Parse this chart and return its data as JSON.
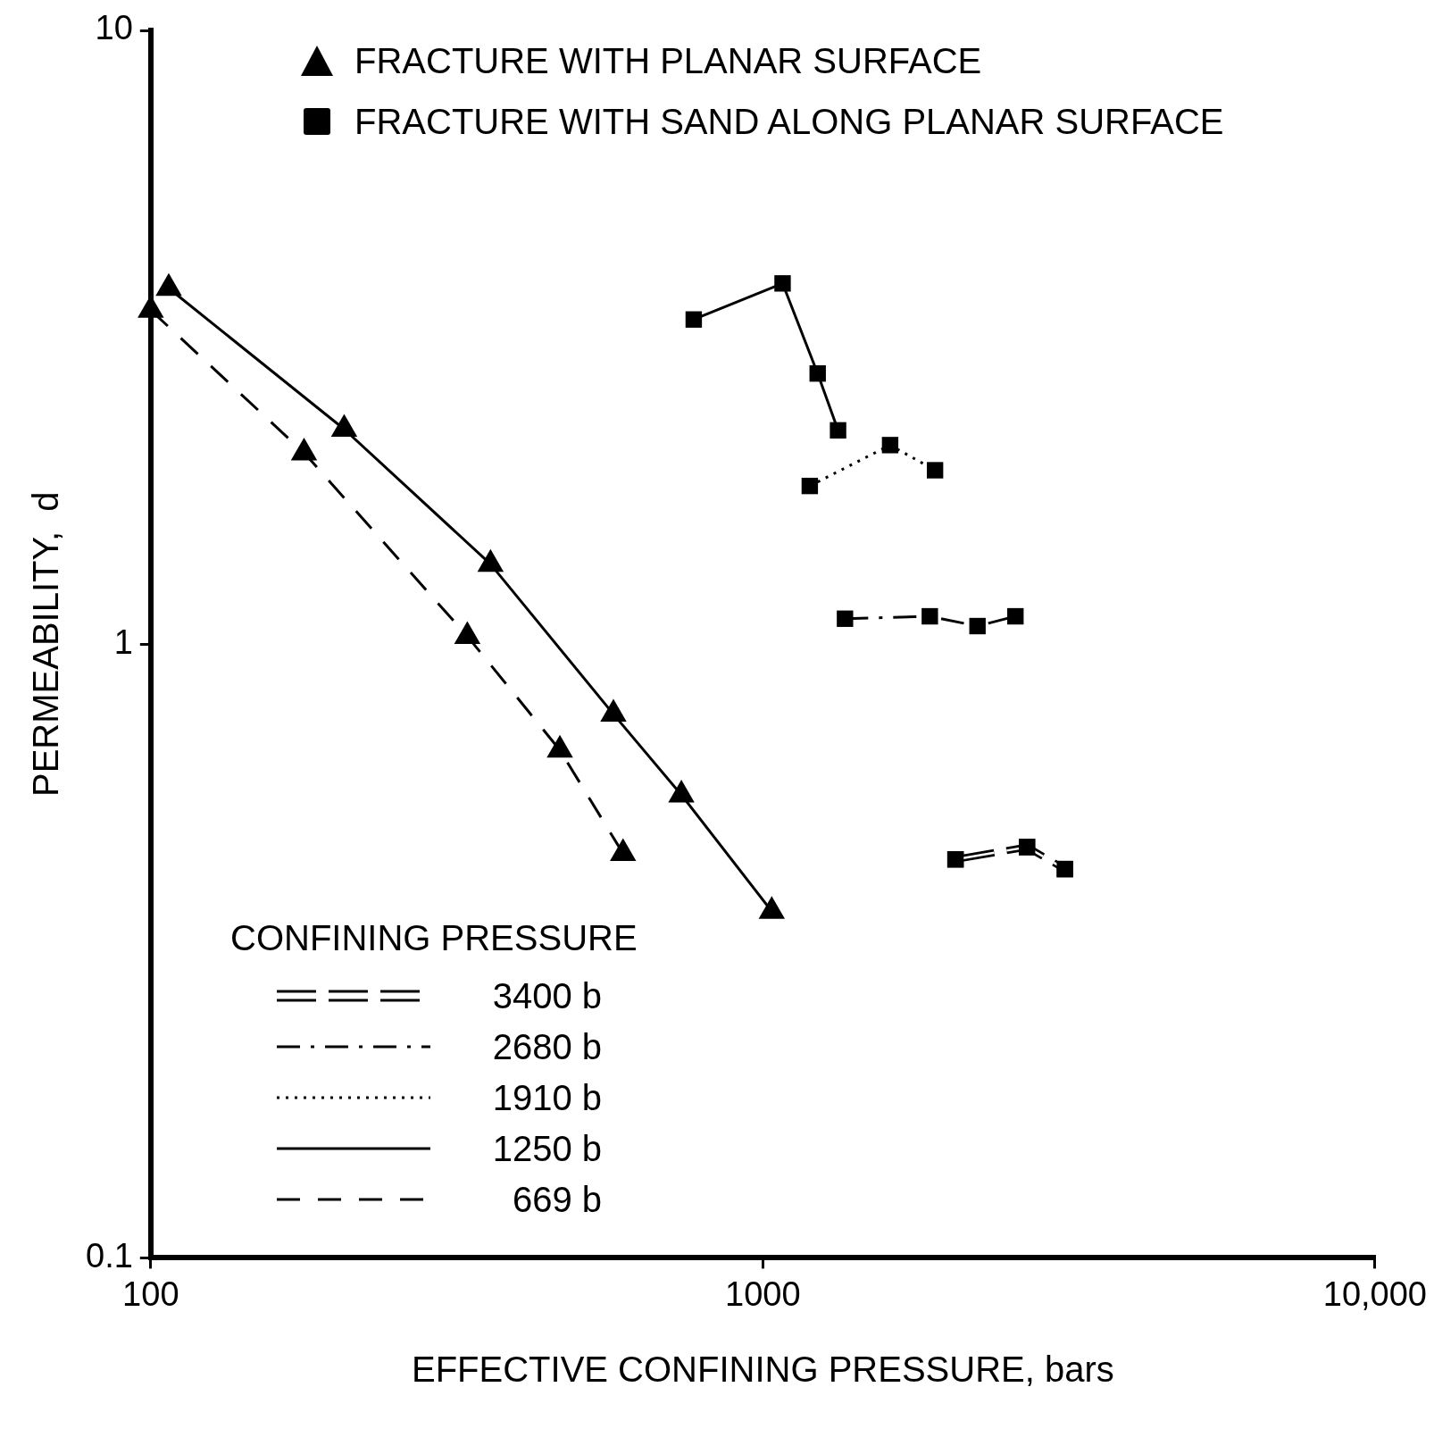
{
  "chart_data": {
    "type": "line",
    "xlabel": "EFFECTIVE CONFINING PRESSURE, bars",
    "ylabel": "PERMEABILITY,  d",
    "log": "xy",
    "grid": false,
    "legend": "bottom left",
    "legend_title": "CONFINING PRESSURE",
    "xlim": [
      100,
      10000
    ],
    "xticks": [
      100,
      1000,
      {
        "value": 10000,
        "label": "10,000"
      }
    ],
    "ylim": [
      0.1,
      10
    ],
    "yticks": [
      0.1,
      1,
      10
    ],
    "annotations": [
      "FRACTURE WITH PLANAR SURFACE",
      "FRACTURE WITH SAND ALONG PLANAR SURFACE"
    ],
    "series": [
      {
        "name": "3400 b",
        "color": "#000000",
        "marker": "square",
        "line_style": "double",
        "x": [
          2064,
          2701,
          3115
        ],
        "values": [
          0.446,
          0.467,
          0.43
        ]
      },
      {
        "name": "2680 b",
        "color": "#000000",
        "marker": "square",
        "line_style": "dashdot",
        "x": [
          1362,
          1874,
          2242,
          2586
        ],
        "values": [
          1.1,
          1.11,
          1.07,
          1.11
        ]
      },
      {
        "name": "1910 b",
        "color": "#000000",
        "marker": "square",
        "line_style": "dotted",
        "x": [
          1193,
          1614,
          1911
        ],
        "values": [
          1.81,
          2.11,
          1.92
        ]
      },
      {
        "name": "1250 b",
        "color": "#000000",
        "marker": "square",
        "line_style": "solid",
        "x": [
          771,
          1077,
          1229,
          1327
        ],
        "values": [
          3.38,
          3.87,
          2.76,
          2.23
        ]
      },
      {
        "color": "#000000",
        "marker": "triangle",
        "line_style": "solid",
        "x": [
          107,
          207,
          359,
          570,
          736,
          1034
        ],
        "values": [
          3.8,
          2.24,
          1.35,
          0.769,
          0.568,
          0.367
        ]
      },
      {
        "name": "669 b",
        "color": "#000000",
        "marker": "triangle",
        "line_style": "dashed",
        "x": [
          100,
          178,
          329,
          466,
          591
        ],
        "values": [
          3.5,
          2.05,
          1.03,
          0.672,
          0.456
        ]
      }
    ]
  }
}
